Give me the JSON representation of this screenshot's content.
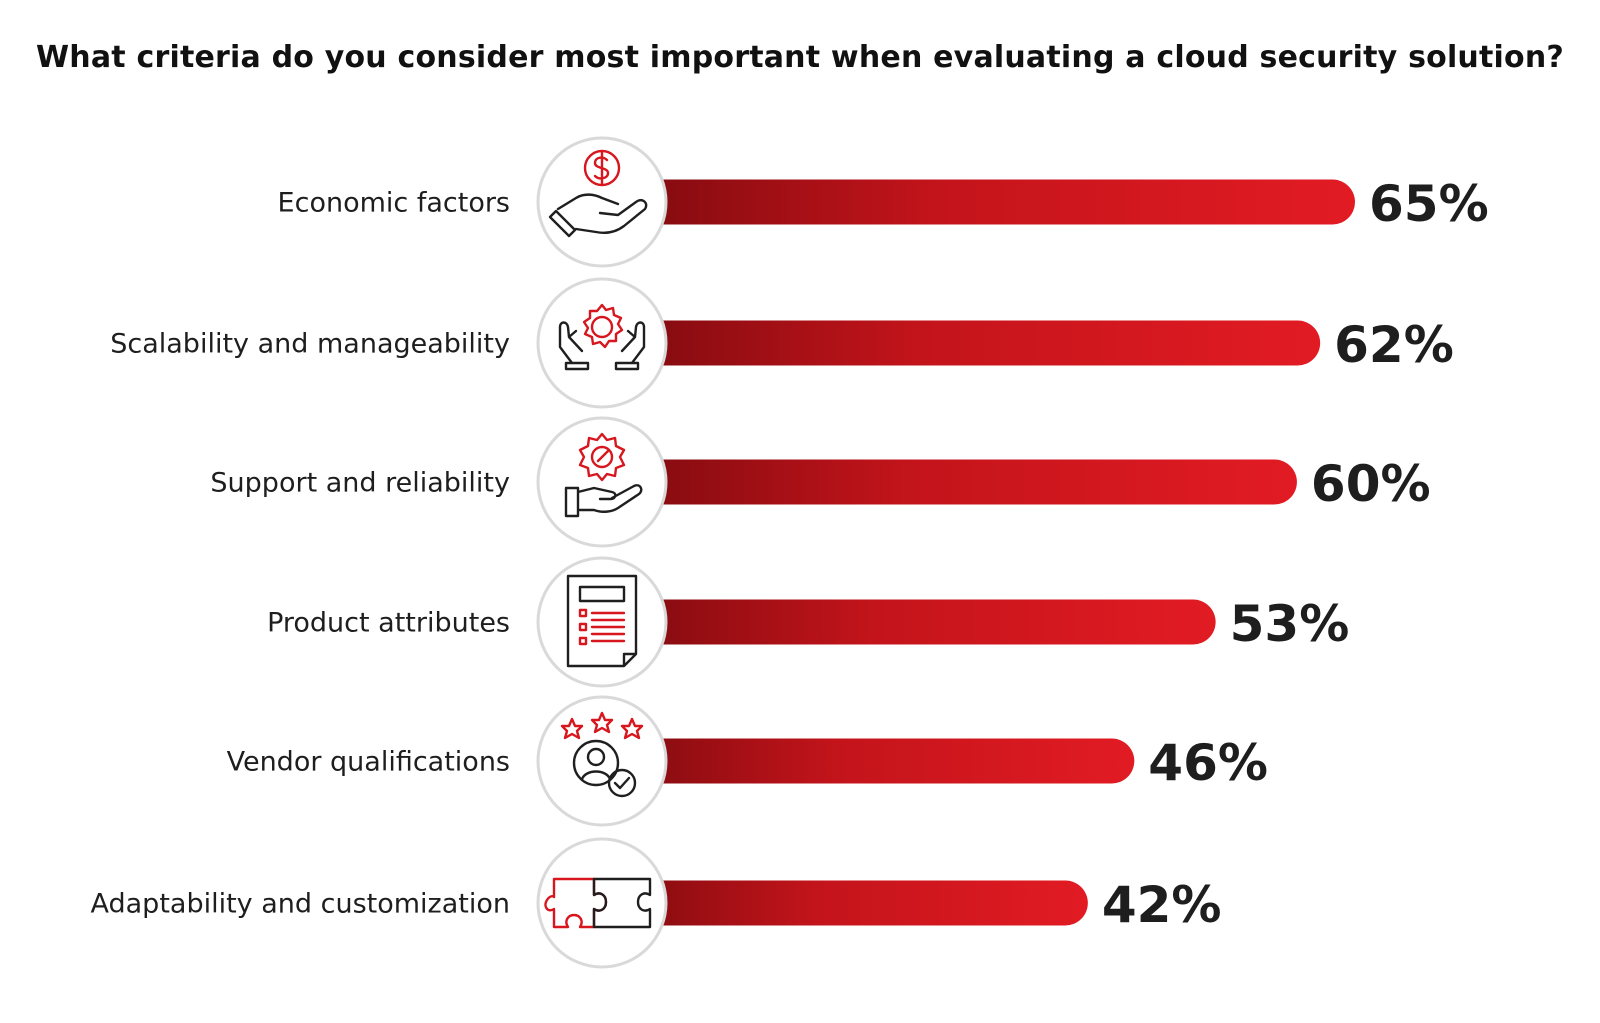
{
  "chart_data": {
    "type": "bar",
    "orientation": "horizontal",
    "title": "What criteria do you consider most important when evaluating a cloud security solution?",
    "categories": [
      "Economic factors",
      "Scalability and manageability",
      "Support and reliability",
      "Product attributes",
      "Vendor qualifications",
      "Adaptability and customization"
    ],
    "values": [
      65,
      62,
      60,
      53,
      46,
      42
    ],
    "value_labels": [
      "65%",
      "62%",
      "60%",
      "53%",
      "46%",
      "42%"
    ],
    "icons": [
      "hand-coin-icon",
      "hands-gear-icon",
      "hand-gear-wrench-icon",
      "document-list-icon",
      "user-stars-check-icon",
      "puzzle-pieces-icon"
    ],
    "unit": "%",
    "xlim": [
      0,
      100
    ],
    "grid": false,
    "colors": {
      "bar_start": "#7a0a0e",
      "bar_end": "#e21b23",
      "icon_accent": "#d7161e",
      "icon_ring": "#d9d9d9"
    }
  }
}
